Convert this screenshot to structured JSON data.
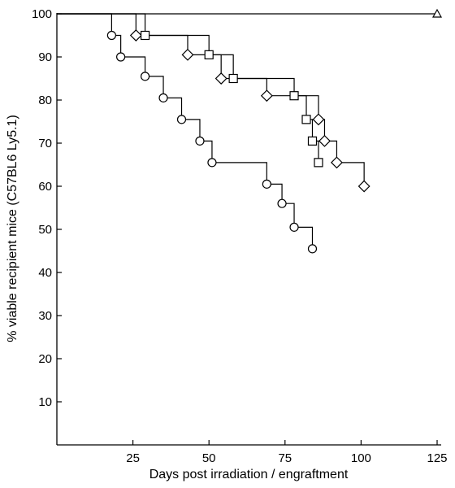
{
  "chart_data": {
    "type": "line",
    "subtype": "kaplan-meier survival step curves",
    "title": "",
    "xlabel": "Days post irradiation / engraftment",
    "ylabel": "% viable recipient mice (C57BL6 Ly5.1)",
    "xlim": [
      0,
      125
    ],
    "ylim": [
      0,
      100
    ],
    "xticks": [
      25,
      50,
      75,
      100,
      125
    ],
    "yticks": [
      10,
      20,
      30,
      40,
      50,
      60,
      70,
      80,
      90,
      100
    ],
    "grid": false,
    "legend": "none",
    "series": [
      {
        "marker": "triangle",
        "points": [
          [
            125,
            100
          ]
        ]
      },
      {
        "marker": "circle",
        "points": [
          [
            18,
            95
          ],
          [
            21,
            90
          ],
          [
            29,
            85.5
          ],
          [
            35,
            80.5
          ],
          [
            41,
            75.5
          ],
          [
            47,
            70.5
          ],
          [
            51,
            65.5
          ],
          [
            69,
            60.5
          ],
          [
            74,
            56
          ],
          [
            78,
            50.5
          ],
          [
            84,
            45.5
          ]
        ]
      },
      {
        "marker": "diamond",
        "points": [
          [
            26,
            95
          ],
          [
            43,
            90.5
          ],
          [
            54,
            85
          ],
          [
            69,
            81
          ],
          [
            86,
            75.5
          ],
          [
            88,
            70.5
          ],
          [
            92,
            65.5
          ],
          [
            101,
            60
          ]
        ]
      },
      {
        "marker": "square",
        "points": [
          [
            29,
            95
          ],
          [
            50,
            90.5
          ],
          [
            58,
            85
          ],
          [
            78,
            81
          ],
          [
            82,
            75.5
          ],
          [
            84,
            70.5
          ],
          [
            86,
            65.5
          ]
        ]
      }
    ]
  }
}
